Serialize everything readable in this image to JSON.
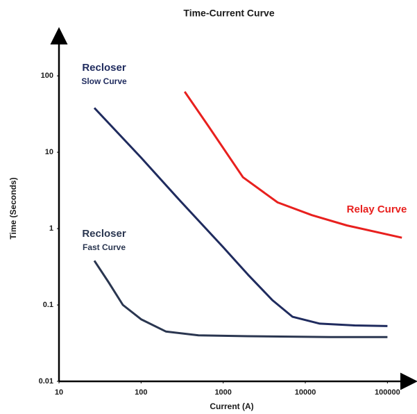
{
  "chart_data": {
    "type": "line",
    "title": "Time-Current Curve",
    "x_label": "Current (A)",
    "y_label": "Time (Seconds)",
    "x_scale": "log",
    "y_scale": "log",
    "xlim": [
      10,
      200000
    ],
    "ylim": [
      0.01,
      400
    ],
    "xticks": [
      10,
      100,
      1000,
      10000,
      100000
    ],
    "yticks": [
      0.01,
      0.1,
      1,
      10,
      100
    ],
    "grid": false,
    "series": [
      {
        "label": [
          "Recloser",
          "Slow Curve"
        ],
        "color": "#1f2b5e",
        "x": [
          27,
          100,
          300,
          1000,
          2000,
          4000,
          7000,
          15000,
          40000,
          100000
        ],
        "values": [
          38,
          8.5,
          2.3,
          0.57,
          0.25,
          0.115,
          0.07,
          0.057,
          0.054,
          0.053
        ]
      },
      {
        "label": [
          "Recloser",
          "Fast Curve"
        ],
        "color": "#2a3650",
        "x": [
          27,
          40,
          60,
          100,
          200,
          500,
          2000,
          20000,
          100000
        ],
        "values": [
          0.38,
          0.2,
          0.1,
          0.065,
          0.045,
          0.04,
          0.039,
          0.038,
          0.038
        ]
      },
      {
        "label": [
          "Relay Curve"
        ],
        "color": "#e8201e",
        "x": [
          340,
          660,
          1740,
          4600,
          12000,
          32000,
          150000
        ],
        "values": [
          62,
          22,
          4.7,
          2.2,
          1.5,
          1.1,
          0.76
        ]
      }
    ]
  }
}
